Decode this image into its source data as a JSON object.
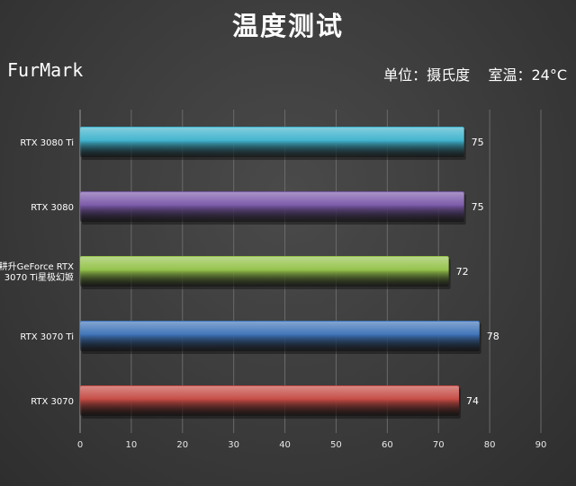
{
  "header": {
    "title": "温度测试",
    "test_name": "FurMark",
    "units_note": "单位：摄氏度    室温：24°C"
  },
  "chart_data": {
    "type": "bar",
    "orientation": "horizontal",
    "categories": [
      "RTX 3080 Ti",
      "RTX 3080",
      "耕升GeForce RTX 3070 Ti星极幻姬",
      "RTX 3070 Ti",
      "RTX 3070"
    ],
    "category_lines": [
      [
        "RTX 3080 Ti"
      ],
      [
        "RTX 3080"
      ],
      [
        "耕升GeForce RTX",
        "3070 Ti星极幻姬"
      ],
      [
        "RTX 3070 Ti"
      ],
      [
        "RTX 3070"
      ]
    ],
    "values": [
      75,
      75,
      72,
      78,
      74
    ],
    "colors": [
      "#3fb3cd",
      "#7a58a8",
      "#94c24a",
      "#3e73b8",
      "#c54a43"
    ],
    "xlim": [
      0,
      90
    ],
    "xticks": [
      0,
      10,
      20,
      30,
      40,
      50,
      60,
      70,
      80,
      90
    ],
    "grid": true,
    "xlabel": "",
    "ylabel": ""
  }
}
